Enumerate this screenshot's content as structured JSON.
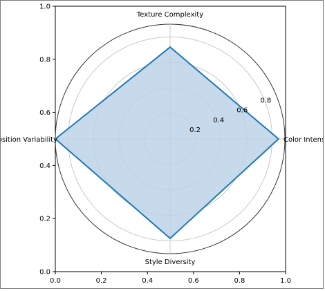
{
  "chart_data": {
    "type": "radar",
    "categories": [
      "Color Intensity",
      "Texture Complexity",
      "Composition Variability",
      "Style Diversity"
    ],
    "values": [
      0.85,
      0.72,
      0.9,
      0.78
    ],
    "radial_ticks": [
      0.2,
      0.4,
      0.6,
      0.8
    ],
    "radial_tick_labels": [
      "0.2",
      "0.4",
      "0.6",
      "0.8"
    ],
    "radial_max": 0.9,
    "cartesian_axes": {
      "x_ticks": [
        "0.0",
        "0.2",
        "0.4",
        "0.6",
        "0.8",
        "1.0"
      ],
      "y_ticks": [
        "0.0",
        "0.2",
        "0.4",
        "0.6",
        "0.8",
        "1.0"
      ],
      "xlim": [
        0,
        1
      ],
      "ylim": [
        0,
        1
      ]
    },
    "grid": true,
    "colors": {
      "line": "#1f77b4",
      "fill": "#bcd3e9",
      "grid": "#c8c8c8",
      "outer_circle": "#333333"
    }
  }
}
